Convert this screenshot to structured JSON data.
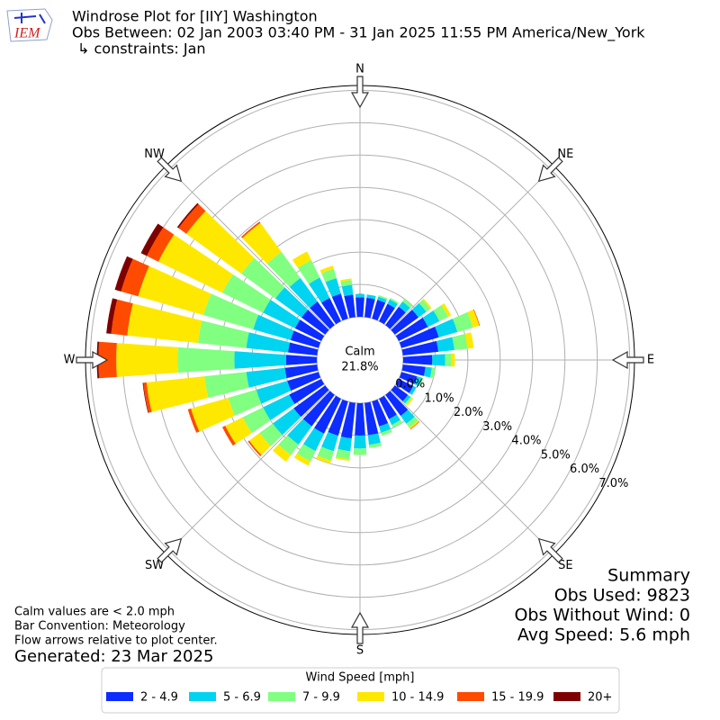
{
  "chart_data": {
    "type": "windrose",
    "logo_text": "IEM",
    "title": "Windrose Plot for [IIY] Washington",
    "subtitle": "Obs Between: 02 Jan 2003 03:40 PM - 31 Jan 2025 11:55 PM America/New_York",
    "constraints": "↳ constraints: Jan",
    "calm": {
      "name": "Calm",
      "value": 21.8,
      "value_label": "21.8%"
    },
    "x": [
      0,
      10,
      20,
      30,
      40,
      50,
      60,
      70,
      80,
      90,
      100,
      110,
      120,
      130,
      140,
      150,
      160,
      170,
      180,
      190,
      200,
      210,
      220,
      230,
      240,
      250,
      260,
      270,
      280,
      290,
      300,
      310,
      320,
      330,
      340,
      350
    ],
    "xlim": [
      0,
      360
    ],
    "xticks": [
      {
        "value": 0,
        "label": "N"
      },
      {
        "value": 45,
        "label": "NE"
      },
      {
        "value": 90,
        "label": "E"
      },
      {
        "value": 135,
        "label": "SE"
      },
      {
        "value": 180,
        "label": "S"
      },
      {
        "value": 225,
        "label": "SW"
      },
      {
        "value": 270,
        "label": "W"
      },
      {
        "value": 315,
        "label": "NW"
      }
    ],
    "ylim": [
      0,
      7.15
    ],
    "yticks": [
      {
        "value": 0,
        "label": "0.0%"
      },
      {
        "value": 1,
        "label": "1.0%"
      },
      {
        "value": 2,
        "label": "2.0%"
      },
      {
        "value": 3,
        "label": "3.0%"
      },
      {
        "value": 4,
        "label": "4.0%"
      },
      {
        "value": 5,
        "label": "5.0%"
      },
      {
        "value": 6,
        "label": "6.0%"
      },
      {
        "value": 7,
        "label": "7.0%"
      }
    ],
    "grid": true,
    "legend_title": "Wind Speed [mph]",
    "series": [
      {
        "name": "2 - 4.9",
        "color": "#0d2cff",
        "values": [
          0.6,
          0.6,
          0.6,
          0.6,
          0.7,
          0.9,
          1.0,
          1.2,
          1.1,
          0.9,
          0.7,
          0.5,
          0.5,
          0.5,
          0.8,
          0.7,
          0.8,
          1.0,
          1.0,
          1.1,
          1.1,
          1.2,
          1.2,
          1.2,
          1.1,
          1.0,
          1.0,
          0.95,
          0.9,
          0.9,
          0.9,
          0.9,
          0.9,
          0.8,
          0.8,
          0.7
        ]
      },
      {
        "name": "5 - 6.9",
        "color": "#00d4f0",
        "values": [
          0.1,
          0.1,
          0.1,
          0.15,
          0.2,
          0.3,
          0.4,
          0.6,
          0.5,
          0.4,
          0.2,
          0.15,
          0.1,
          0.1,
          0.3,
          0.2,
          0.2,
          0.3,
          0.4,
          0.4,
          0.5,
          0.6,
          0.7,
          0.8,
          0.9,
          1.0,
          1.2,
          1.6,
          1.3,
          1.2,
          1.1,
          1.0,
          0.9,
          0.7,
          0.5,
          0.3
        ]
      },
      {
        "name": "7 - 9.9",
        "color": "#80ff80",
        "values": [
          0,
          0,
          0.05,
          0.05,
          0.1,
          0.15,
          0.3,
          0.5,
          0.4,
          0.2,
          0.1,
          0.05,
          0,
          0.05,
          0.15,
          0.1,
          0.1,
          0.1,
          0.2,
          0.25,
          0.3,
          0.35,
          0.4,
          0.5,
          0.7,
          0.9,
          1.3,
          1.75,
          1.5,
          1.6,
          1.4,
          1.3,
          1.0,
          0.6,
          0.3,
          0.15
        ]
      },
      {
        "name": "10 - 14.9",
        "color": "#ffe800",
        "values": [
          0,
          0,
          0,
          0,
          0,
          0.05,
          0.1,
          0.2,
          0.2,
          0.1,
          0,
          0,
          0,
          0.05,
          0.05,
          0,
          0,
          0,
          0,
          0.05,
          0.1,
          0.15,
          0.25,
          0.4,
          0.6,
          1.2,
          1.8,
          1.9,
          2.2,
          2.1,
          2.2,
          2.1,
          1.1,
          0.3,
          0.1,
          0.05
        ]
      },
      {
        "name": "15 - 19.9",
        "color": "#ff4b00",
        "values": [
          0,
          0,
          0,
          0,
          0,
          0,
          0,
          0.02,
          0,
          0,
          0,
          0,
          0,
          0,
          0.02,
          0,
          0,
          0,
          0,
          0,
          0,
          0,
          0,
          0.05,
          0.1,
          0.1,
          0.1,
          0.55,
          0.5,
          0.55,
          0.4,
          0.3,
          0.05,
          0,
          0,
          0
        ]
      },
      {
        "name": "20+",
        "color": "#7f0000",
        "values": [
          0,
          0,
          0,
          0,
          0,
          0,
          0,
          0,
          0,
          0,
          0,
          0,
          0,
          0,
          0,
          0,
          0,
          0,
          0,
          0,
          0,
          0,
          0,
          0,
          0,
          0,
          0.02,
          0.05,
          0.15,
          0.2,
          0.2,
          0.05,
          0,
          0,
          0,
          0
        ]
      }
    ],
    "notes": [
      "Calm values are < 2.0 mph",
      "Bar Convention: Meteorology",
      "Flow arrows relative to plot center."
    ],
    "generated": "Generated: 23 Mar 2025",
    "summary": [
      "Summary",
      "Obs Used: 9823",
      "Obs Without Wind: 0",
      "Avg Speed: 5.6 mph"
    ]
  }
}
